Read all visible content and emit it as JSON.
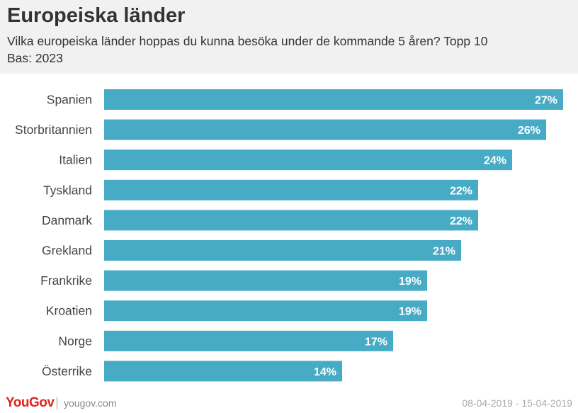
{
  "header": {
    "title": "Europeiska länder",
    "subtitle": "Vilka europeiska länder hoppas du kunna besöka under de kommande 5 åren?  Topp 10",
    "base": "Bas: 2023"
  },
  "footer": {
    "logo": "YouGov",
    "site": "yougov.com",
    "dates": "08-04-2019 - 15-04-2019"
  },
  "colors": {
    "bar": "#47abc5",
    "header_bg": "#f1f1f1",
    "brand": "#e0231c"
  },
  "chart_data": {
    "type": "bar",
    "orientation": "horizontal",
    "categories": [
      "Spanien",
      "Storbritannien",
      "Italien",
      "Tyskland",
      "Danmark",
      "Grekland",
      "Frankrike",
      "Kroatien",
      "Norge",
      "Österrike"
    ],
    "values": [
      27,
      26,
      24,
      22,
      22,
      21,
      19,
      19,
      17,
      14
    ],
    "value_labels": [
      "27%",
      "26%",
      "24%",
      "22%",
      "22%",
      "21%",
      "19%",
      "19%",
      "17%",
      "14%"
    ],
    "unit": "%",
    "xlim": [
      0,
      27
    ],
    "grid": false,
    "legend": "none"
  }
}
